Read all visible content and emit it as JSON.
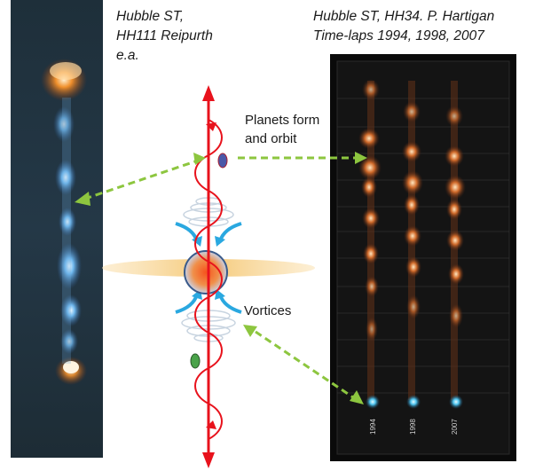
{
  "captions": {
    "left_line1": "Hubble ST,",
    "left_line2": "HH111 Reipurth",
    "left_line3": "e.a.",
    "right_line1": "Hubble ST, HH34. P. Hartigan",
    "right_line2": "Time-laps 1994, 1998, 2007"
  },
  "labels": {
    "planets_line1": "Planets form",
    "planets_line2": "and orbit",
    "vortices": "Vortices"
  },
  "years": [
    "1994",
    "1998",
    "2007"
  ],
  "colors": {
    "jet_axis": "#e8121c",
    "disk": "#f7d79a",
    "star": "#e8502a",
    "vortex_arrow": "#2aa8e0",
    "dashed_arrow": "#8dc63f",
    "planet": "#4aa34a"
  }
}
